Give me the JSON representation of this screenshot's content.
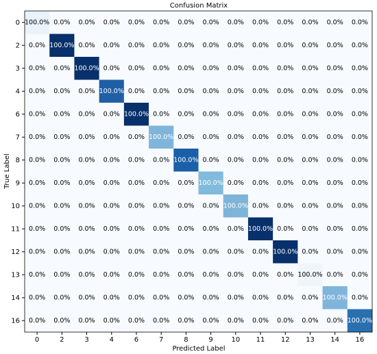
{
  "chart_data": {
    "type": "heatmap",
    "title": "Confusion Matrix",
    "x_label": "Predicted Label",
    "y_label": "True Label",
    "categories": [
      "0",
      "2",
      "3",
      "4",
      "6",
      "7",
      "8",
      "9",
      "10",
      "11",
      "12",
      "13",
      "14",
      "16"
    ],
    "values": [
      [
        100,
        0,
        0,
        0,
        0,
        0,
        0,
        0,
        0,
        0,
        0,
        0,
        0,
        0
      ],
      [
        0,
        100,
        0,
        0,
        0,
        0,
        0,
        0,
        0,
        0,
        0,
        0,
        0,
        0
      ],
      [
        0,
        0,
        100,
        0,
        0,
        0,
        0,
        0,
        0,
        0,
        0,
        0,
        0,
        0
      ],
      [
        0,
        0,
        0,
        100,
        0,
        0,
        0,
        0,
        0,
        0,
        0,
        0,
        0,
        0
      ],
      [
        0,
        0,
        0,
        0,
        100,
        0,
        0,
        0,
        0,
        0,
        0,
        0,
        0,
        0
      ],
      [
        0,
        0,
        0,
        0,
        0,
        100,
        0,
        0,
        0,
        0,
        0,
        0,
        0,
        0
      ],
      [
        0,
        0,
        0,
        0,
        0,
        0,
        100,
        0,
        0,
        0,
        0,
        0,
        0,
        0
      ],
      [
        0,
        0,
        0,
        0,
        0,
        0,
        0,
        100,
        0,
        0,
        0,
        0,
        0,
        0
      ],
      [
        0,
        0,
        0,
        0,
        0,
        0,
        0,
        0,
        100,
        0,
        0,
        0,
        0,
        0
      ],
      [
        0,
        0,
        0,
        0,
        0,
        0,
        0,
        0,
        0,
        100,
        0,
        0,
        0,
        0
      ],
      [
        0,
        0,
        0,
        0,
        0,
        0,
        0,
        0,
        0,
        0,
        100,
        0,
        0,
        0
      ],
      [
        0,
        0,
        0,
        0,
        0,
        0,
        0,
        0,
        0,
        0,
        0,
        100,
        0,
        0
      ],
      [
        0,
        0,
        0,
        0,
        0,
        0,
        0,
        0,
        0,
        0,
        0,
        0,
        100,
        0
      ],
      [
        0,
        0,
        0,
        0,
        0,
        0,
        0,
        0,
        0,
        0,
        0,
        0,
        0,
        100
      ]
    ],
    "value_labels": [
      [
        "100.0%",
        "0.0%",
        "0.0%",
        "0.0%",
        "0.0%",
        "0.0%",
        "0.0%",
        "0.0%",
        "0.0%",
        "0.0%",
        "0.0%",
        "0.0%",
        "0.0%",
        "0.0%"
      ],
      [
        "0.0%",
        "100.0%",
        "0.0%",
        "0.0%",
        "0.0%",
        "0.0%",
        "0.0%",
        "0.0%",
        "0.0%",
        "0.0%",
        "0.0%",
        "0.0%",
        "0.0%",
        "0.0%"
      ],
      [
        "0.0%",
        "0.0%",
        "100.0%",
        "0.0%",
        "0.0%",
        "0.0%",
        "0.0%",
        "0.0%",
        "0.0%",
        "0.0%",
        "0.0%",
        "0.0%",
        "0.0%",
        "0.0%"
      ],
      [
        "0.0%",
        "0.0%",
        "0.0%",
        "100.0%",
        "0.0%",
        "0.0%",
        "0.0%",
        "0.0%",
        "0.0%",
        "0.0%",
        "0.0%",
        "0.0%",
        "0.0%",
        "0.0%"
      ],
      [
        "0.0%",
        "0.0%",
        "0.0%",
        "0.0%",
        "100.0%",
        "0.0%",
        "0.0%",
        "0.0%",
        "0.0%",
        "0.0%",
        "0.0%",
        "0.0%",
        "0.0%",
        "0.0%"
      ],
      [
        "0.0%",
        "0.0%",
        "0.0%",
        "0.0%",
        "0.0%",
        "100.0%",
        "0.0%",
        "0.0%",
        "0.0%",
        "0.0%",
        "0.0%",
        "0.0%",
        "0.0%",
        "0.0%"
      ],
      [
        "0.0%",
        "0.0%",
        "0.0%",
        "0.0%",
        "0.0%",
        "0.0%",
        "100.0%",
        "0.0%",
        "0.0%",
        "0.0%",
        "0.0%",
        "0.0%",
        "0.0%",
        "0.0%"
      ],
      [
        "0.0%",
        "0.0%",
        "0.0%",
        "0.0%",
        "0.0%",
        "0.0%",
        "0.0%",
        "100.0%",
        "0.0%",
        "0.0%",
        "0.0%",
        "0.0%",
        "0.0%",
        "0.0%"
      ],
      [
        "0.0%",
        "0.0%",
        "0.0%",
        "0.0%",
        "0.0%",
        "0.0%",
        "0.0%",
        "0.0%",
        "100.0%",
        "0.0%",
        "0.0%",
        "0.0%",
        "0.0%",
        "0.0%"
      ],
      [
        "0.0%",
        "0.0%",
        "0.0%",
        "0.0%",
        "0.0%",
        "0.0%",
        "0.0%",
        "0.0%",
        "0.0%",
        "100.0%",
        "0.0%",
        "0.0%",
        "0.0%",
        "0.0%"
      ],
      [
        "0.0%",
        "0.0%",
        "0.0%",
        "0.0%",
        "0.0%",
        "0.0%",
        "0.0%",
        "0.0%",
        "0.0%",
        "0.0%",
        "100.0%",
        "0.0%",
        "0.0%",
        "0.0%"
      ],
      [
        "0.0%",
        "0.0%",
        "0.0%",
        "0.0%",
        "0.0%",
        "0.0%",
        "0.0%",
        "0.0%",
        "0.0%",
        "0.0%",
        "0.0%",
        "100.0%",
        "0.0%",
        "0.0%"
      ],
      [
        "0.0%",
        "0.0%",
        "0.0%",
        "0.0%",
        "0.0%",
        "0.0%",
        "0.0%",
        "0.0%",
        "0.0%",
        "0.0%",
        "0.0%",
        "0.0%",
        "100.0%",
        "0.0%"
      ],
      [
        "0.0%",
        "0.0%",
        "0.0%",
        "0.0%",
        "0.0%",
        "0.0%",
        "0.0%",
        "0.0%",
        "0.0%",
        "0.0%",
        "0.0%",
        "0.0%",
        "0.0%",
        "100.0%"
      ]
    ],
    "background_color": "#f7fbff",
    "diagonal_colors": [
      "#eaf2fa",
      "#08306b",
      "#08306b",
      "#1f5fa6",
      "#08306b",
      "#7fb5da",
      "#1a5fa8",
      "#82badb",
      "#7fb4d9",
      "#08306b",
      "#08306b",
      "#f0f5fb",
      "#7fb5da",
      "#2a6fb0"
    ]
  }
}
